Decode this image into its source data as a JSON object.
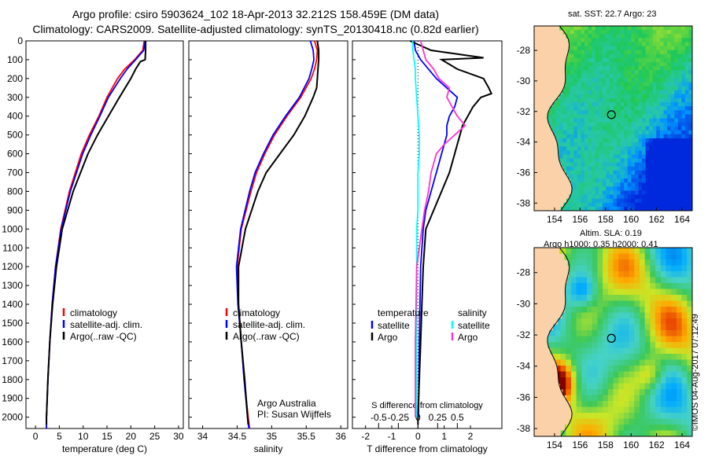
{
  "header": {
    "title_line1": "Argo profile: csiro 5903624_102 18-Apr-2013 32.212S 158.459E (DM data)",
    "title_line2": "Climatology: CARS2009. Satellite-adjusted climatology: synTS_20130418.nc (0.82d earlier)"
  },
  "footer": {
    "credit": "©IMOS 04-Aug-2017 07:12:49"
  },
  "chart_data": [
    {
      "type": "line",
      "id": "temperature",
      "xlabel": "temperature (deg C)",
      "ylabel": "",
      "xlim": [
        -2,
        31
      ],
      "ylim": [
        2060,
        0
      ],
      "xticks": [
        0,
        5,
        10,
        15,
        20,
        25,
        30
      ],
      "xtick_labels": [
        "0",
        "5",
        "10",
        "15",
        "20",
        "25",
        "30"
      ],
      "yticks": [
        0,
        100,
        200,
        300,
        400,
        500,
        600,
        700,
        800,
        900,
        1000,
        1100,
        1200,
        1300,
        1400,
        1500,
        1600,
        1700,
        1800,
        1900,
        2000
      ],
      "ytick_labels": [
        "0",
        "100",
        "200",
        "300",
        "400",
        "500",
        "600",
        "700",
        "800",
        "900",
        "1000",
        "1100",
        "1200",
        "1300",
        "1400",
        "1500",
        "1600",
        "1700",
        "1800",
        "1900",
        "2000"
      ],
      "legend": {
        "position": "lower-right",
        "entries": [
          "climatology",
          "satellite-adj. clim.",
          "Argo(..raw -QC)"
        ]
      },
      "series": [
        {
          "name": "climatology",
          "color": "#ff0000",
          "depth": [
            0,
            50,
            100,
            150,
            200,
            300,
            400,
            500,
            600,
            800,
            1000,
            1200,
            1400,
            1600,
            1800,
            2000,
            2060
          ],
          "values": [
            22.8,
            22.5,
            20.8,
            18.7,
            17.2,
            15.0,
            13.3,
            11.3,
            9.6,
            7.1,
            5.3,
            4.2,
            3.5,
            3.0,
            2.6,
            2.3,
            2.3
          ]
        },
        {
          "name": "satellite-adj. clim.",
          "color": "#0000ff",
          "depth": [
            0,
            50,
            100,
            150,
            200,
            300,
            400,
            500,
            600,
            800,
            1000,
            1200,
            1400,
            1600,
            1800,
            2000,
            2060
          ],
          "values": [
            23.0,
            22.7,
            21.0,
            19.2,
            17.8,
            15.3,
            13.5,
            11.6,
            9.9,
            7.3,
            5.4,
            4.2,
            3.5,
            3.0,
            2.6,
            2.3,
            2.3
          ]
        },
        {
          "name": "Argo(..raw -QC)",
          "color": "#000000",
          "depth": [
            0,
            50,
            100,
            110,
            150,
            200,
            300,
            400,
            500,
            600,
            800,
            1000,
            1200,
            1400,
            1600,
            1800,
            2000,
            2040
          ],
          "values": [
            23.1,
            23.1,
            23.0,
            22.0,
            21.0,
            20.0,
            17.6,
            15.3,
            13.0,
            11.0,
            7.9,
            5.6,
            4.4,
            3.6,
            3.0,
            2.6,
            2.3,
            2.3
          ]
        }
      ]
    },
    {
      "type": "line",
      "id": "salinity",
      "xlabel": "salinity",
      "ylabel": "",
      "xlim": [
        33.8,
        36.1
      ],
      "ylim": [
        2060,
        0
      ],
      "xticks": [
        34,
        34.5,
        35,
        35.5,
        36
      ],
      "xtick_labels": [
        "34",
        "34.5",
        "35",
        "35.5",
        "36"
      ],
      "legend": {
        "position": "lower-right",
        "entries": [
          "climatology",
          "satellite-adj. clim.",
          "Argo(..raw -QC)"
        ]
      },
      "annotation": [
        "Argo Australia",
        "PI: Susan Wijffels"
      ],
      "series": [
        {
          "name": "climatology",
          "color": "#ff0000",
          "depth": [
            0,
            50,
            100,
            150,
            200,
            300,
            400,
            500,
            600,
            700,
            800,
            1000,
            1200,
            1400,
            1600,
            1800,
            2000,
            2060
          ],
          "values": [
            35.62,
            35.66,
            35.65,
            35.62,
            35.57,
            35.42,
            35.22,
            35.04,
            34.9,
            34.78,
            34.7,
            34.56,
            34.5,
            34.52,
            34.56,
            34.6,
            34.66,
            34.68
          ]
        },
        {
          "name": "satellite-adj. clim.",
          "color": "#0000ff",
          "depth": [
            0,
            50,
            100,
            150,
            200,
            300,
            400,
            500,
            600,
            700,
            800,
            1000,
            1200,
            1400,
            1600,
            1800,
            2000,
            2060
          ],
          "values": [
            35.56,
            35.6,
            35.61,
            35.58,
            35.54,
            35.4,
            35.2,
            35.02,
            34.88,
            34.76,
            34.68,
            34.55,
            34.49,
            34.51,
            34.56,
            34.6,
            34.65,
            34.67
          ]
        },
        {
          "name": "Argo(..raw -QC)",
          "color": "#000000",
          "depth": [
            0,
            50,
            100,
            150,
            200,
            250,
            300,
            400,
            500,
            600,
            700,
            800,
            1000,
            1200,
            1400,
            1600,
            1800,
            2000,
            2040
          ],
          "values": [
            35.66,
            35.68,
            35.68,
            35.67,
            35.66,
            35.65,
            35.6,
            35.48,
            35.32,
            35.12,
            34.92,
            34.8,
            34.62,
            34.52,
            34.52,
            34.56,
            34.61,
            34.65,
            34.66
          ]
        }
      ]
    },
    {
      "type": "line",
      "id": "differences",
      "xlabel": "T difference from climatology",
      "xlabel_top": "S difference from climatology",
      "xlim": [
        -2.5,
        3.2
      ],
      "ylim": [
        2060,
        0
      ],
      "xticks": [
        -2,
        -1,
        0,
        1,
        2
      ],
      "xtick_labels": [
        "-2",
        "-1",
        "0",
        "1",
        "2"
      ],
      "xticks_top": [
        -1.5,
        -0.75,
        0,
        0.75,
        1.5
      ],
      "xtick_labels_top": [
        "-0.5",
        "-0.25",
        "0",
        "0.25",
        "0.5"
      ],
      "legend": {
        "position": "lower-right",
        "group_titles": [
          "temperature",
          "salinity"
        ],
        "entries": [
          "satellite",
          "Argo",
          "satellite",
          "Argo"
        ]
      },
      "series": [
        {
          "name": "temperature satellite",
          "color": "#0000ff",
          "depth": [
            0,
            50,
            100,
            150,
            200,
            250,
            300,
            350,
            400,
            450,
            500,
            550,
            600,
            700,
            800,
            900,
            1000,
            1200,
            1600,
            2000
          ],
          "values": [
            -0.15,
            -0.1,
            0.1,
            0.4,
            0.7,
            1.1,
            1.5,
            1.4,
            1.2,
            1.1,
            1.1,
            1.0,
            0.9,
            0.7,
            0.5,
            0.3,
            0.2,
            0.1,
            0.05,
            0.02
          ]
        },
        {
          "name": "temperature Argo",
          "color": "#000000",
          "depth": [
            0,
            50,
            90,
            100,
            150,
            200,
            250,
            280,
            300,
            350,
            400,
            450,
            500,
            550,
            600,
            700,
            800,
            900,
            1000,
            1200,
            1400,
            1600,
            1800,
            2000,
            2040
          ],
          "values": [
            -0.3,
            0.5,
            2.5,
            0.9,
            1.5,
            2.5,
            2.7,
            2.8,
            2.4,
            2.1,
            1.9,
            1.7,
            1.6,
            1.5,
            1.4,
            1.2,
            0.9,
            0.6,
            0.3,
            0.2,
            0.15,
            0.1,
            0.05,
            0.0,
            0.0
          ]
        },
        {
          "name": "salinity satellite",
          "color": "#00ffff",
          "depth": [
            0,
            50,
            100,
            150,
            200,
            300,
            400,
            500,
            600,
            700,
            800,
            900,
            1000,
            1200,
            1600,
            2000
          ],
          "values": [
            -0.2,
            -0.2,
            -0.15,
            -0.1,
            -0.1,
            -0.05,
            0.0,
            0.05,
            0.05,
            0.0,
            0.0,
            0.0,
            -0.05,
            -0.05,
            -0.05,
            -0.05
          ]
        },
        {
          "name": "salinity Argo",
          "color": "#ff33cc",
          "depth": [
            0,
            50,
            100,
            150,
            200,
            250,
            300,
            350,
            400,
            450,
            500,
            550,
            600,
            700,
            800,
            900,
            1000,
            1100,
            1200,
            1600,
            2000
          ],
          "values": [
            0.1,
            0.2,
            0.3,
            0.6,
            0.8,
            1.2,
            1.1,
            1.3,
            1.5,
            1.8,
            1.4,
            1.0,
            0.7,
            0.5,
            0.4,
            0.25,
            0.15,
            0.05,
            -0.05,
            -0.1,
            -0.1
          ]
        }
      ]
    },
    {
      "type": "heatmap",
      "id": "sst_map",
      "title": "sat. SST: 22.7 Argo: 23",
      "x_ticks": [
        154,
        156,
        158,
        160,
        162,
        164
      ],
      "y_ticks": [
        -28,
        -30,
        -32,
        -34,
        -36,
        -38
      ],
      "xlim": [
        152.4,
        164.8
      ],
      "ylim": [
        -38.5,
        -26.4
      ],
      "marker": {
        "lon": 158.46,
        "lat": -32.21
      }
    },
    {
      "type": "heatmap",
      "id": "sla_map",
      "title_line1": "Altim. SLA: 0.19",
      "title_line2": "Argo h1000: 0.35 h2000: 0.41",
      "x_ticks": [
        154,
        156,
        158,
        160,
        162,
        164
      ],
      "y_ticks": [
        -28,
        -30,
        -32,
        -34,
        -36,
        -38
      ],
      "xlim": [
        152.4,
        164.8
      ],
      "ylim": [
        -38.5,
        -26.4
      ],
      "marker": {
        "lon": 158.46,
        "lat": -32.21
      }
    }
  ]
}
